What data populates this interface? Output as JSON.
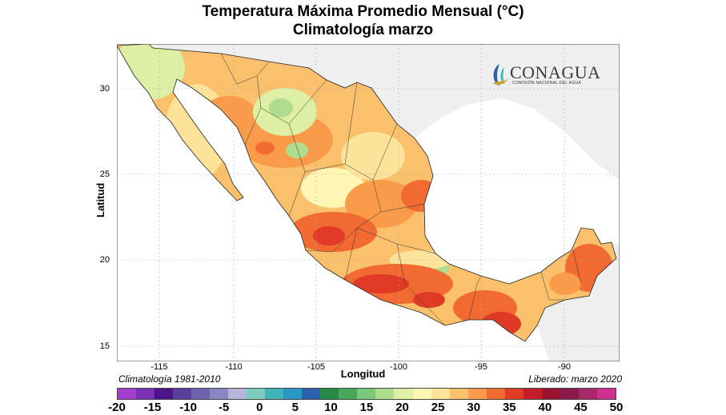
{
  "title": "Temperatura Máxima Promedio Mensual (°C)",
  "subtitle": "Climatología marzo",
  "axis": {
    "ylabel": "Latitud",
    "xlabel": "Longitud",
    "lat_ticks": [
      "30",
      "25",
      "20",
      "15"
    ],
    "lon_ticks": [
      "-115",
      "-110",
      "-105",
      "-100",
      "-95",
      "-90"
    ]
  },
  "footer": {
    "climatology": "Climatología 1981-2010",
    "released": "Liberado: marzo 2020"
  },
  "logo": {
    "name": "CONAGUA",
    "subtitle": "COMISIÓN NACIONAL DEL AGUA"
  },
  "colorbar": {
    "labels": [
      "-20",
      "-15",
      "-10",
      "-5",
      "0",
      "5",
      "10",
      "15",
      "20",
      "25",
      "30",
      "35",
      "40",
      "45",
      "50"
    ],
    "colors": [
      "#a23fcf",
      "#7b2fb5",
      "#4b1488",
      "#5c3f9b",
      "#6d62ad",
      "#8a86c1",
      "#b6b4d8",
      "#7ecbc0",
      "#40b4b8",
      "#2a98c4",
      "#2a62ad",
      "#238b45",
      "#48a85a",
      "#7cc77a",
      "#b1dc8f",
      "#dcefa2",
      "#fff6b4",
      "#fde29a",
      "#fbc06b",
      "#f99b49",
      "#f16a32",
      "#e03a25",
      "#c51e2a",
      "#9b1230",
      "#8a1a4a",
      "#a8266a",
      "#cc2f8e"
    ]
  },
  "map": {
    "land_color": "#ffffff",
    "outside_color": "#efefef",
    "water_color": "#ffffff"
  }
}
